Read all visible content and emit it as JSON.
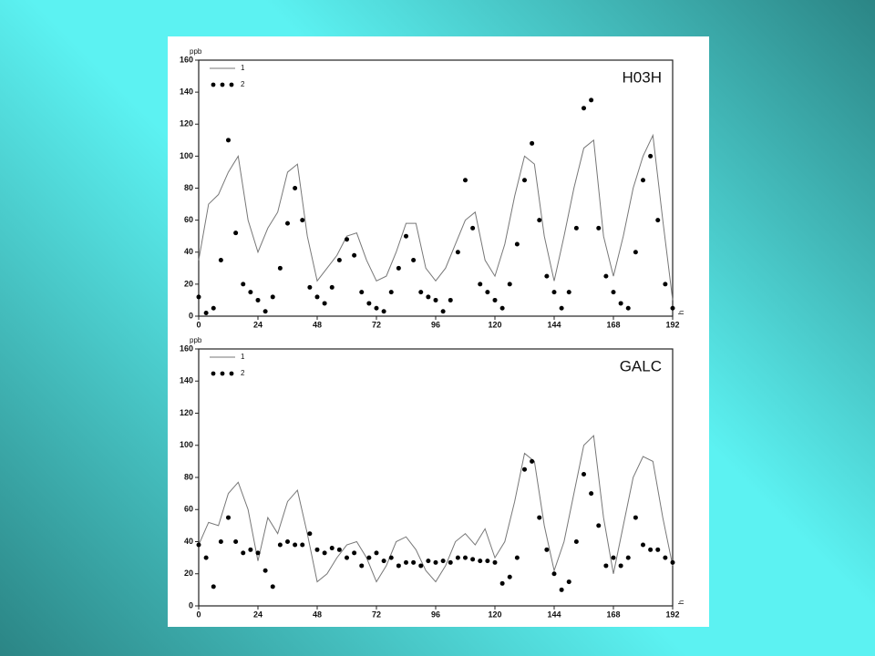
{
  "chart_data": [
    {
      "type": "line",
      "title": "H03H",
      "ylabel": "ppb",
      "xlabel": "h",
      "xlim": [
        0,
        192
      ],
      "xticks": [
        0,
        24,
        48,
        72,
        96,
        120,
        144,
        168,
        192
      ],
      "ylim": [
        0,
        160
      ],
      "yticks": [
        0,
        20,
        40,
        60,
        80,
        100,
        120,
        140,
        160
      ],
      "legend": "top-left",
      "series": [
        {
          "name": "1",
          "kind": "line",
          "color": "#777777",
          "x": [
            0,
            4,
            8,
            12,
            16,
            20,
            24,
            28,
            32,
            36,
            40,
            44,
            48,
            52,
            56,
            60,
            64,
            68,
            72,
            76,
            80,
            84,
            88,
            92,
            96,
            100,
            104,
            108,
            112,
            116,
            120,
            124,
            128,
            132,
            136,
            140,
            144,
            148,
            152,
            156,
            160,
            164,
            168,
            172,
            176,
            180,
            184,
            188,
            192
          ],
          "values": [
            35,
            70,
            76,
            90,
            100,
            60,
            40,
            55,
            65,
            90,
            95,
            50,
            22,
            30,
            38,
            50,
            52,
            35,
            22,
            25,
            40,
            58,
            58,
            30,
            22,
            30,
            45,
            60,
            65,
            35,
            25,
            45,
            75,
            100,
            95,
            50,
            22,
            50,
            80,
            105,
            110,
            50,
            25,
            50,
            80,
            100,
            113,
            60,
            10
          ]
        },
        {
          "name": "2",
          "kind": "dots",
          "color": "#000000",
          "x": [
            0,
            3,
            6,
            9,
            12,
            15,
            18,
            21,
            24,
            27,
            30,
            33,
            36,
            39,
            42,
            45,
            48,
            51,
            54,
            57,
            60,
            63,
            66,
            69,
            72,
            75,
            78,
            81,
            84,
            87,
            90,
            93,
            96,
            99,
            102,
            105,
            108,
            111,
            114,
            117,
            120,
            123,
            126,
            129,
            132,
            135,
            138,
            141,
            144,
            147,
            150,
            153,
            156,
            159,
            162,
            165,
            168,
            171,
            174,
            177,
            180,
            183,
            186,
            189,
            192
          ],
          "values": [
            12,
            2,
            5,
            35,
            110,
            52,
            20,
            15,
            10,
            3,
            12,
            30,
            58,
            80,
            60,
            18,
            12,
            8,
            18,
            35,
            48,
            38,
            15,
            8,
            5,
            3,
            15,
            30,
            50,
            35,
            15,
            12,
            10,
            3,
            10,
            40,
            85,
            55,
            20,
            15,
            10,
            5,
            20,
            45,
            85,
            108,
            60,
            25,
            15,
            5,
            15,
            55,
            130,
            135,
            55,
            25,
            15,
            8,
            5,
            40,
            85,
            100,
            60,
            20,
            5
          ]
        }
      ]
    },
    {
      "type": "line",
      "title": "GALC",
      "ylabel": "ppb",
      "xlabel": "h",
      "xlim": [
        0,
        192
      ],
      "xticks": [
        0,
        24,
        48,
        72,
        96,
        120,
        144,
        168,
        192
      ],
      "ylim": [
        0,
        160
      ],
      "yticks": [
        0,
        20,
        40,
        60,
        80,
        100,
        120,
        140,
        160
      ],
      "legend": "top-left",
      "series": [
        {
          "name": "1",
          "kind": "line",
          "color": "#777777",
          "x": [
            0,
            4,
            8,
            12,
            16,
            20,
            24,
            28,
            32,
            36,
            40,
            44,
            48,
            52,
            56,
            60,
            64,
            68,
            72,
            76,
            80,
            84,
            88,
            92,
            96,
            100,
            104,
            108,
            112,
            116,
            120,
            124,
            128,
            132,
            136,
            140,
            144,
            148,
            152,
            156,
            160,
            164,
            168,
            172,
            176,
            180,
            184,
            188,
            192
          ],
          "values": [
            38,
            52,
            50,
            70,
            77,
            60,
            28,
            55,
            45,
            65,
            72,
            45,
            15,
            20,
            30,
            38,
            40,
            30,
            15,
            25,
            40,
            43,
            35,
            22,
            15,
            25,
            40,
            45,
            38,
            48,
            30,
            40,
            65,
            95,
            90,
            50,
            22,
            40,
            70,
            100,
            106,
            55,
            20,
            50,
            80,
            93,
            90,
            55,
            25
          ]
        },
        {
          "name": "2",
          "kind": "dots",
          "color": "#000000",
          "x": [
            0,
            3,
            6,
            9,
            12,
            15,
            18,
            21,
            24,
            27,
            30,
            33,
            36,
            39,
            42,
            45,
            48,
            51,
            54,
            57,
            60,
            63,
            66,
            69,
            72,
            75,
            78,
            81,
            84,
            87,
            90,
            93,
            96,
            99,
            102,
            105,
            108,
            111,
            114,
            117,
            120,
            123,
            126,
            129,
            132,
            135,
            138,
            141,
            144,
            147,
            150,
            153,
            156,
            159,
            162,
            165,
            168,
            171,
            174,
            177,
            180,
            183,
            186,
            189,
            192
          ],
          "values": [
            38,
            30,
            12,
            40,
            55,
            40,
            33,
            35,
            33,
            22,
            12,
            38,
            40,
            38,
            38,
            45,
            35,
            33,
            36,
            35,
            30,
            33,
            25,
            30,
            33,
            28,
            30,
            25,
            27,
            27,
            25,
            28,
            27,
            28,
            27,
            30,
            30,
            29,
            28,
            28,
            27,
            14,
            18,
            30,
            85,
            90,
            55,
            35,
            20,
            10,
            15,
            40,
            82,
            70,
            50,
            25,
            30,
            25,
            30,
            55,
            38,
            35,
            35,
            30,
            27
          ]
        }
      ]
    }
  ]
}
